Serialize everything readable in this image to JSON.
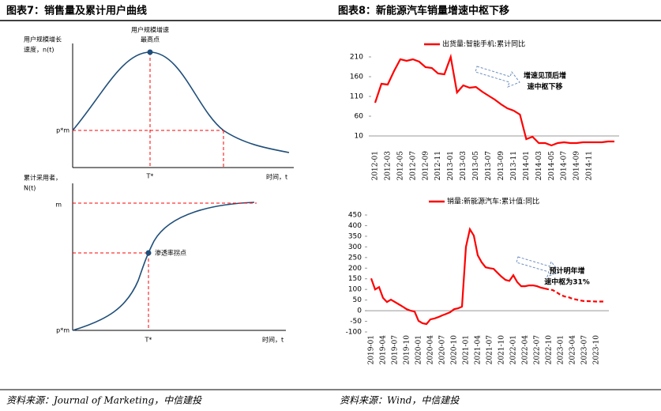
{
  "figure7": {
    "title": "图表7：销售量及累计用户曲线",
    "top": {
      "y_label": [
        "用户规模增长",
        "速度，n(t)"
      ],
      "peak_label": [
        "用户规模增速",
        "最高点"
      ],
      "y_point": "p*m",
      "x_point": "T*",
      "x_label": "时间，t"
    },
    "bottom": {
      "y_label": [
        "累计采用者，",
        "N(t)"
      ],
      "y_top": "m",
      "inflection_label": "渗透率拐点",
      "y_point": "p*m",
      "x_point": "T*",
      "x_label": "时间，t"
    },
    "source": "资料来源：Journal of Marketing，中信建投"
  },
  "figure8": {
    "title": "图表8：新能源汽车销量增速中枢下移",
    "source": "资料来源：Wind，中信建投"
  },
  "chart_data": [
    {
      "type": "line",
      "categories": [
        "2012-01",
        null,
        "2012-03",
        null,
        "2012-05",
        null,
        "2012-07",
        null,
        "2012-09",
        null,
        "2012-11",
        null,
        "2013-01",
        null,
        "2013-03",
        null,
        "2013-05",
        null,
        "2013-07",
        null,
        "2013-09",
        null,
        "2013-11",
        null,
        "2014-01",
        null,
        "2014-03",
        null,
        "2014-05",
        null,
        "2014-07",
        null,
        "2014-09",
        null,
        "2014-11",
        null,
        null,
        null,
        null
      ],
      "series": [
        {
          "name": "出货量:智能手机:累计同比",
          "color": "#ff0000",
          "values": [
            94,
            142,
            140,
            174,
            204,
            200,
            204,
            198,
            184,
            182,
            168,
            166,
            210,
            120,
            138,
            132,
            134,
            122,
            112,
            102,
            90,
            80,
            74,
            64,
            2,
            8,
            -8,
            -8,
            -14,
            -8,
            -6,
            -8,
            -8,
            -6,
            -6,
            -6,
            -6,
            -4,
            -4
          ]
        }
      ],
      "ylim": [
        -20,
        224
      ],
      "yticks": [
        10,
        60,
        110,
        160,
        210
      ],
      "xaxis_cross": 10,
      "annotation": [
        "增速见顶后增",
        "速中枢下移"
      ]
    },
    {
      "type": "line",
      "categories": [
        "2019-01",
        null,
        null,
        "2019-04",
        null,
        null,
        "2019-07",
        null,
        null,
        "2019-10",
        null,
        null,
        "2020-01",
        null,
        null,
        "2020-04",
        null,
        null,
        "2020-07",
        null,
        null,
        "2020-10",
        null,
        null,
        "2021-01",
        null,
        null,
        "2021-04",
        null,
        null,
        "2021-07",
        null,
        null,
        "2021-10",
        null,
        null,
        "2022-01",
        null,
        null,
        "2022-04",
        null,
        null,
        "2022-07",
        null,
        null,
        "2022-10",
        null,
        null,
        "2023-01",
        null,
        null,
        "2023-04",
        null,
        null,
        "2023-07",
        null,
        null,
        "2023-10",
        null,
        null
      ],
      "series": [
        {
          "name": "销量:新能源汽车:累计值:同比",
          "color": "#ff0000",
          "values": [
            152,
            100,
            111,
            60,
            41,
            52,
            41,
            30,
            19,
            7,
            0,
            -4,
            -48,
            -59,
            -63,
            -41,
            -37,
            -30,
            -22,
            -15,
            -7,
            7,
            11,
            19,
            300,
            383,
            353,
            260,
            227,
            204,
            200,
            197,
            178,
            160,
            145,
            140,
            167,
            134,
            115,
            115,
            119,
            119,
            115,
            108,
            104,
            null,
            null,
            null,
            null,
            null,
            null,
            null,
            null,
            null,
            null,
            null,
            null,
            null,
            null,
            null
          ]
        },
        {
          "color": "#ff0000",
          "dash": true,
          "values": [
            null,
            null,
            null,
            null,
            null,
            null,
            null,
            null,
            null,
            null,
            null,
            null,
            null,
            null,
            null,
            null,
            null,
            null,
            null,
            null,
            null,
            null,
            null,
            null,
            null,
            null,
            null,
            null,
            null,
            null,
            null,
            null,
            null,
            null,
            null,
            null,
            null,
            null,
            null,
            null,
            null,
            null,
            null,
            null,
            104,
            100,
            97,
            86,
            74,
            67,
            63,
            56,
            52,
            48,
            45,
            45,
            44,
            43,
            43,
            43
          ]
        }
      ],
      "ylim": [
        -100,
        450
      ],
      "yticks": [
        -100,
        -50,
        0,
        50,
        100,
        150,
        200,
        250,
        300,
        350,
        400,
        450
      ],
      "xaxis_cross": 0,
      "annotation": [
        "预计明年增",
        "速中枢为31%"
      ]
    }
  ]
}
